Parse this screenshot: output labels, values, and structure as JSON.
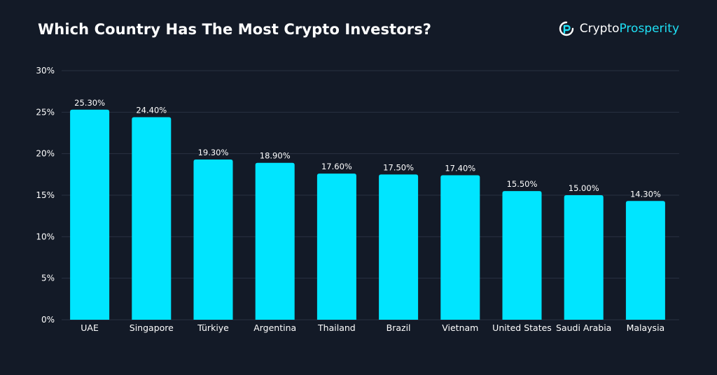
{
  "header": {
    "title": "Which Country Has The Most Crypto Investors?",
    "brand_part1": "Crypto",
    "brand_part2": "Prosperity",
    "logo_icon": "cryptoprosperity-logo-icon"
  },
  "colors": {
    "background": "#131a27",
    "bar": "#00e5ff",
    "grid": "#2a3242",
    "text": "#ffffff",
    "brand_accent": "#1fe0f5"
  },
  "chart_data": {
    "type": "bar",
    "title": "Which Country Has The Most Crypto Investors?",
    "xlabel": "",
    "ylabel": "",
    "categories": [
      "UAE",
      "Singapore",
      "Türkiye",
      "Argentina",
      "Thailand",
      "Brazil",
      "Vietnam",
      "United States",
      "Saudi Arabia",
      "Malaysia"
    ],
    "values": [
      25.3,
      24.4,
      19.3,
      18.9,
      17.6,
      17.5,
      17.4,
      15.5,
      15.0,
      14.3
    ],
    "data_labels": [
      "25.30%",
      "24.40%",
      "19.30%",
      "18.90%",
      "17.60%",
      "17.50%",
      "17.40%",
      "15.50%",
      "15.00%",
      "14.30%"
    ],
    "ylim": [
      0,
      30
    ],
    "yticks": [
      0,
      5,
      10,
      15,
      20,
      25,
      30
    ],
    "ytick_labels": [
      "0%",
      "5%",
      "10%",
      "15%",
      "20%",
      "25%",
      "30%"
    ],
    "grid": true,
    "legend": "none"
  }
}
